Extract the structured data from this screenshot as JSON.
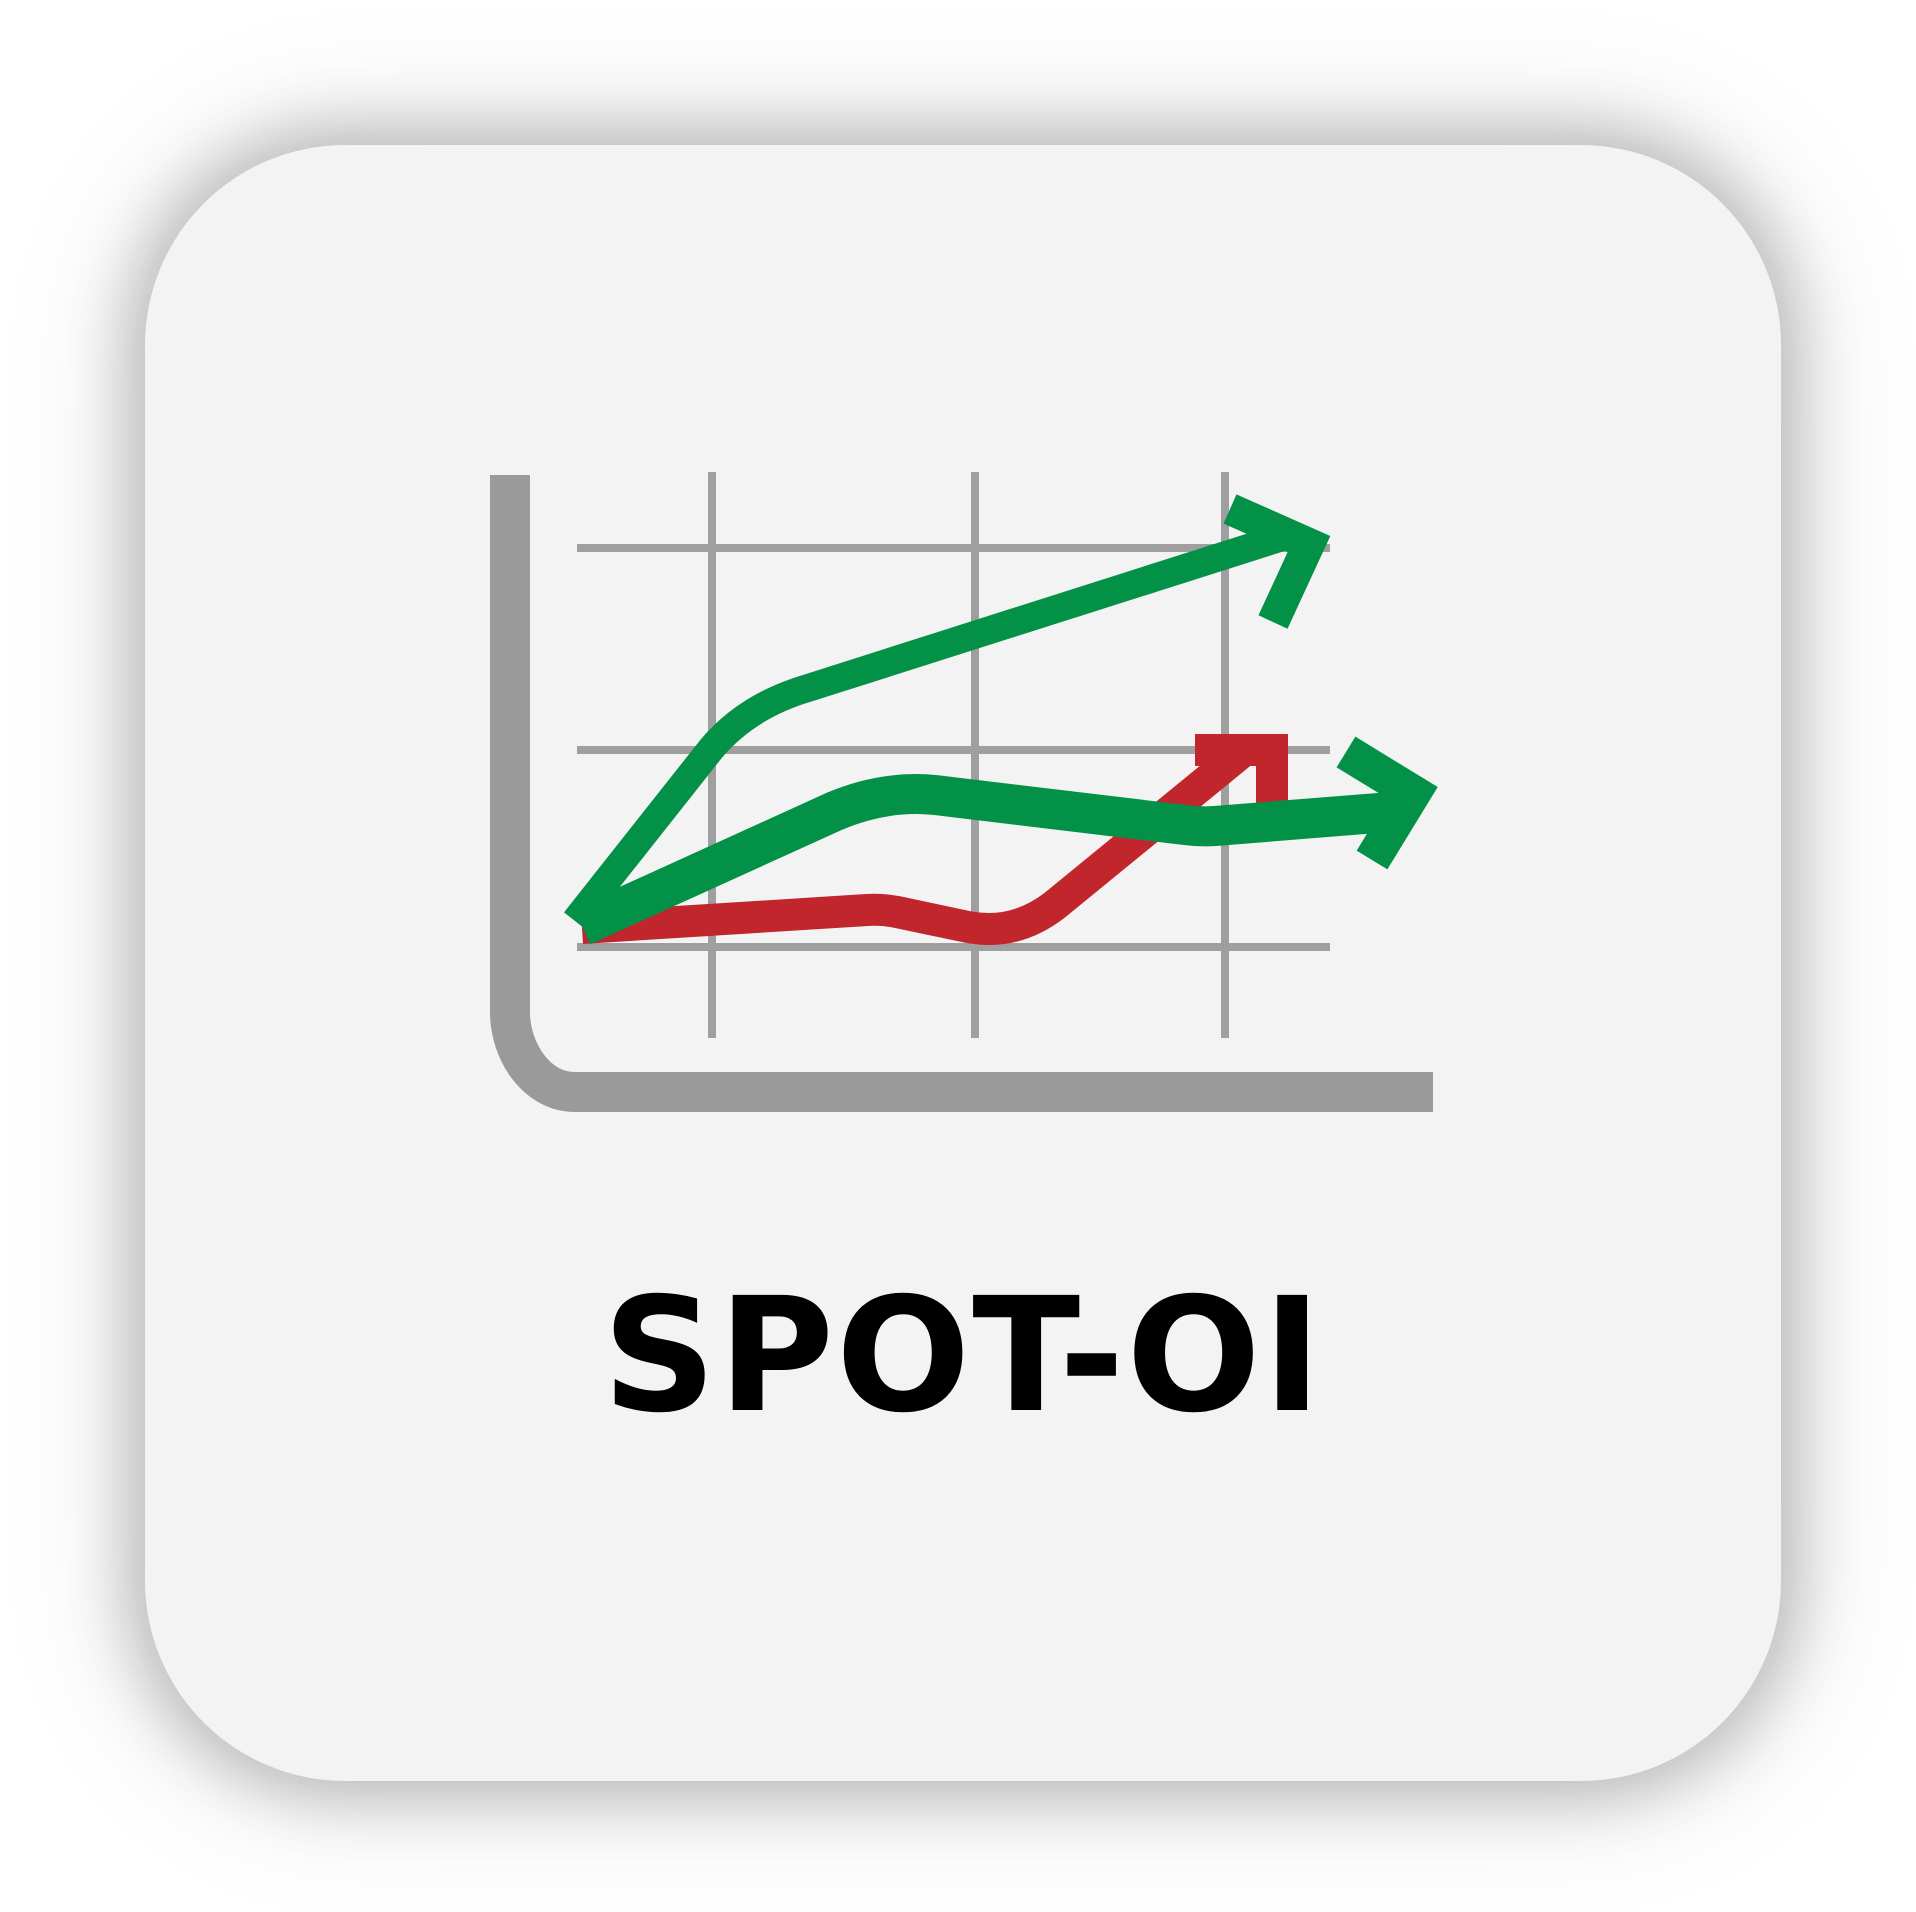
{
  "app_tile": {
    "label": "SPOT-OI",
    "icon": "trend-chart-icon",
    "colors": {
      "background": "#f3f3f3",
      "axis": "#9a9a9a",
      "grid": "#9f9f9f",
      "green": "#039148",
      "red": "#c1262d",
      "text": "#000000"
    }
  }
}
